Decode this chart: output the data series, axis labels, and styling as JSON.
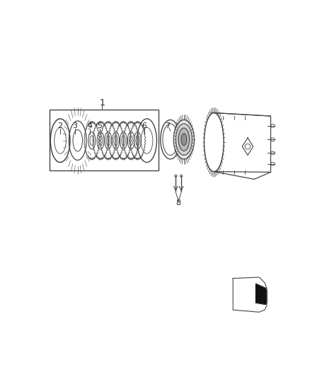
{
  "bg_color": "#ffffff",
  "line_color": "#444444",
  "dark_color": "#222222",
  "figure_width": 4.38,
  "figure_height": 5.33,
  "dpi": 100
}
